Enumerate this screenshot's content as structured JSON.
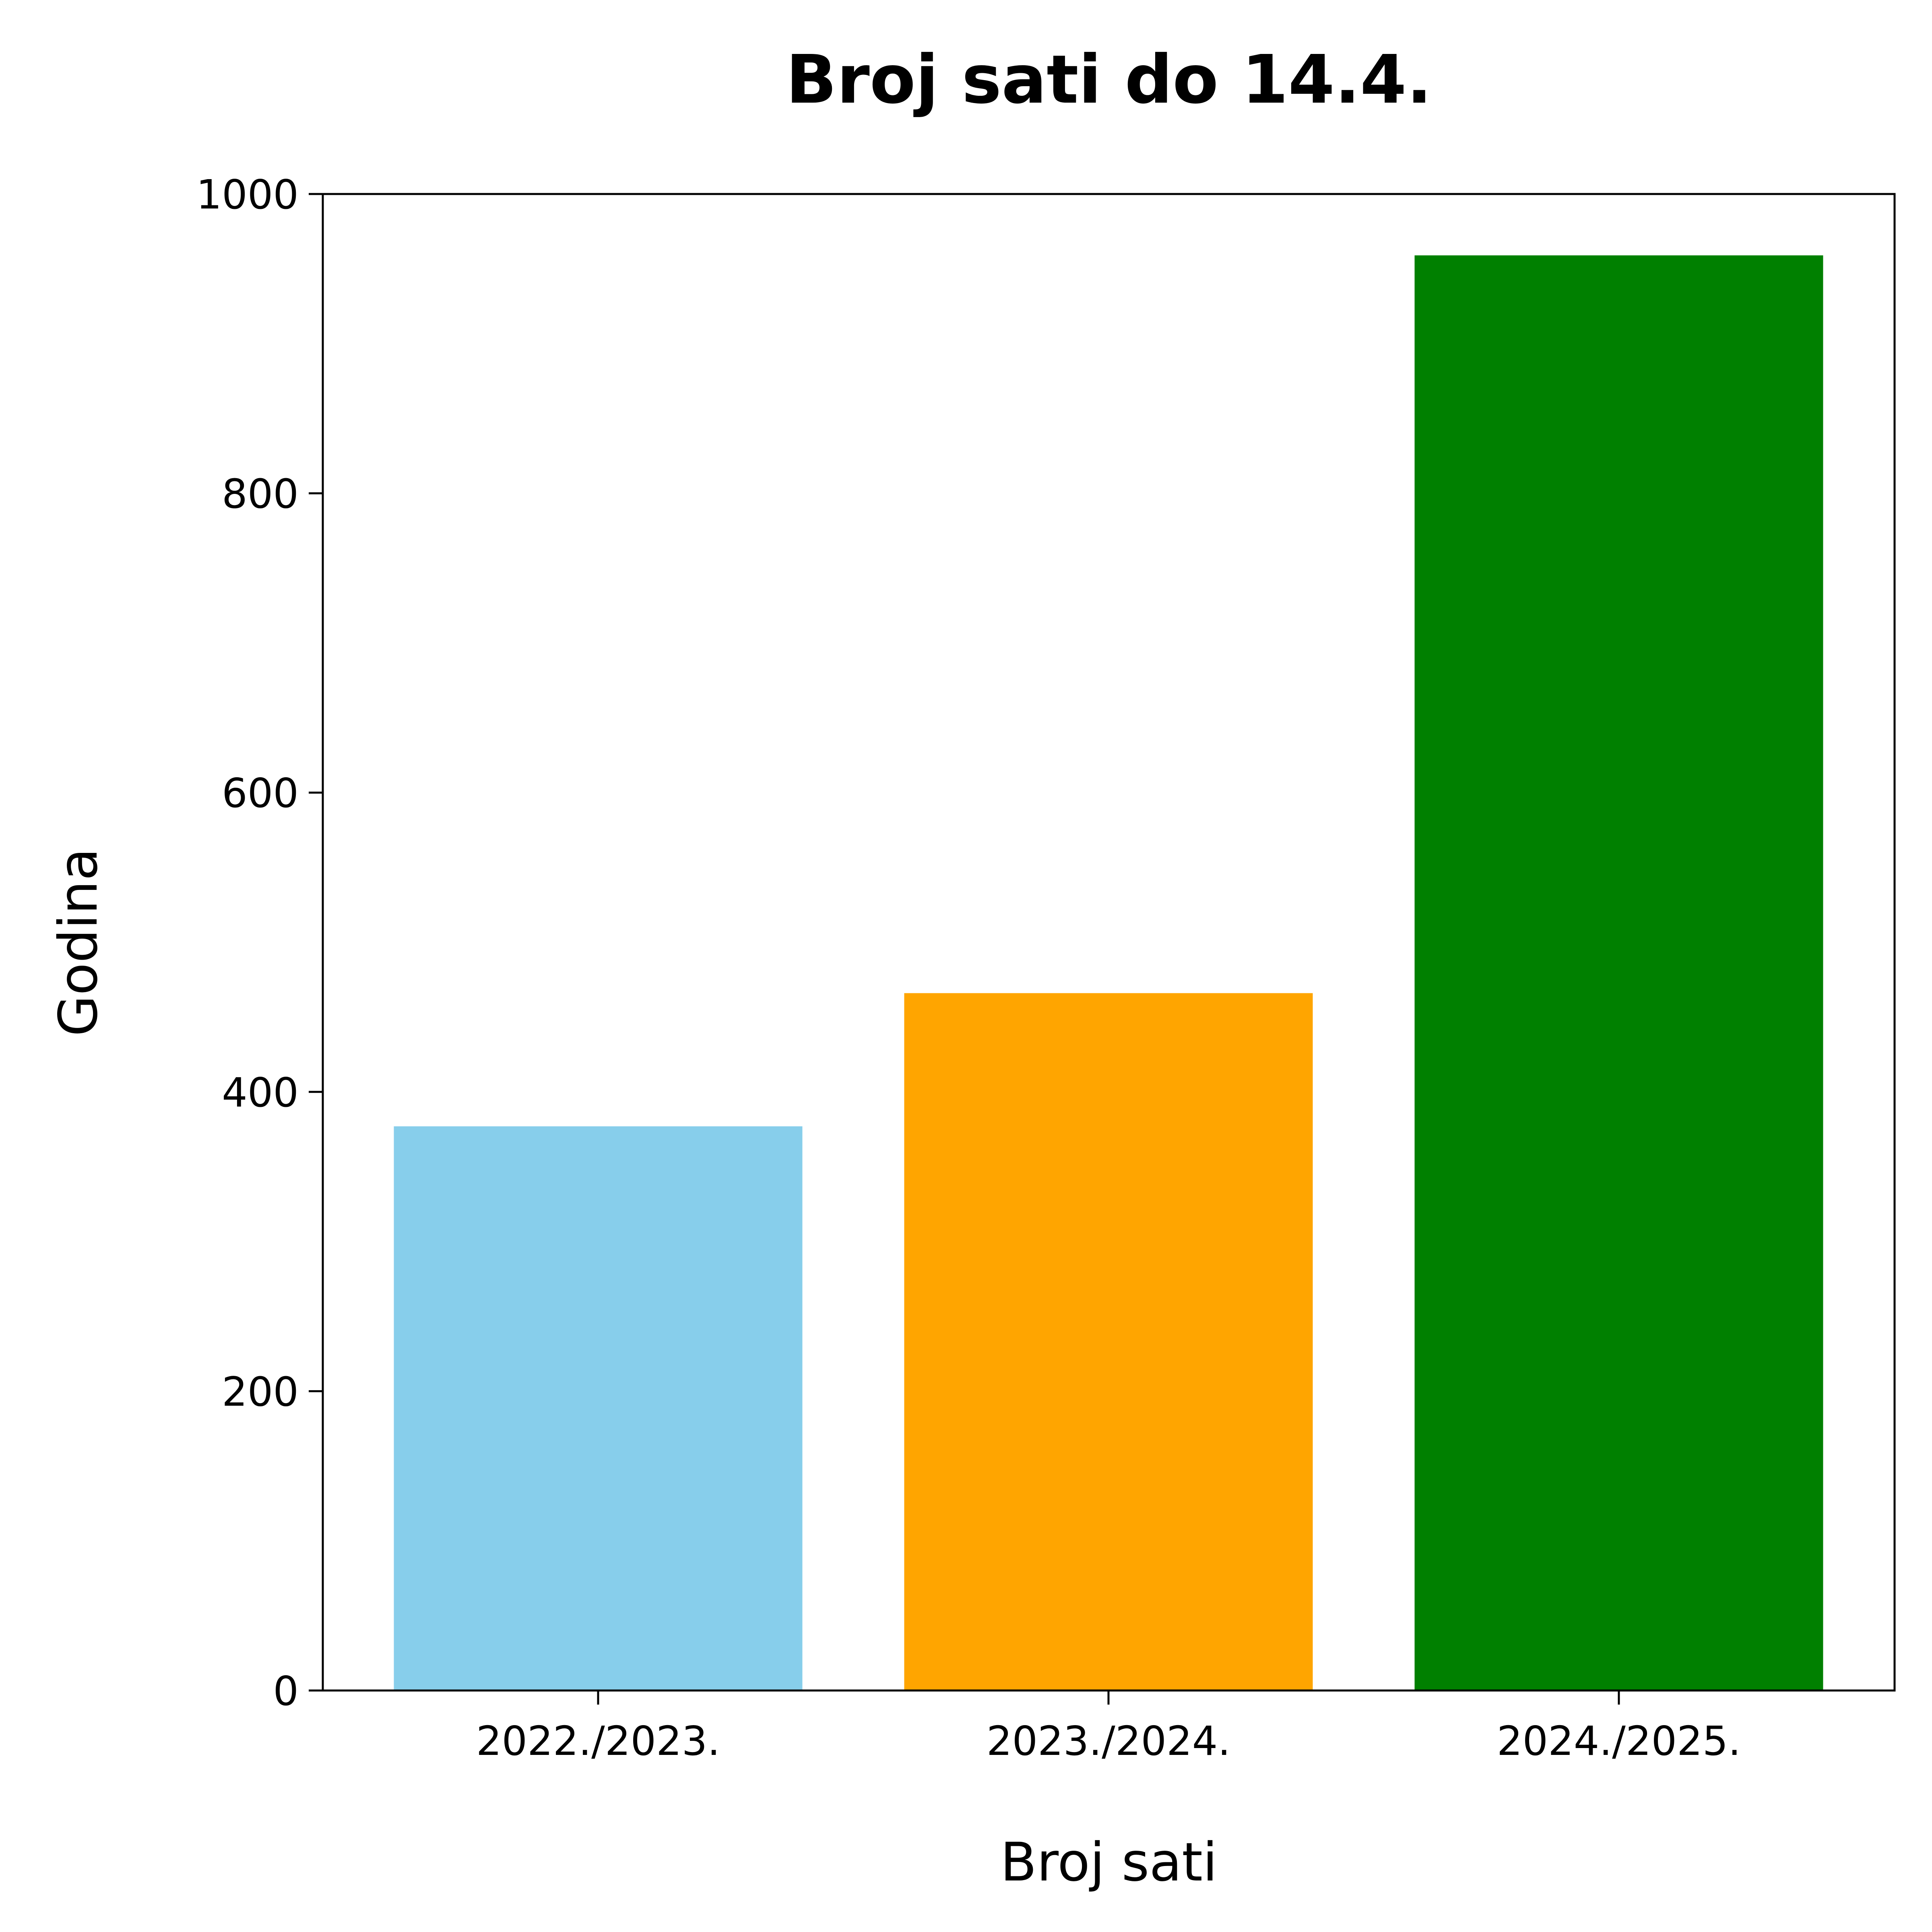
{
  "chart_data": {
    "type": "bar",
    "title": "Broj sati do 14.4.",
    "xlabel": "Broj sati",
    "ylabel": "Godina",
    "categories": [
      "2022./2023.",
      "2023./2024.",
      "2024./2025."
    ],
    "values": [
      377,
      466,
      959
    ],
    "colors": [
      "#87CEEB",
      "#FFA500",
      "#008000"
    ],
    "ylim": [
      0,
      1000
    ],
    "yticks": [
      0,
      200,
      400,
      600,
      800,
      1000
    ],
    "grid": false,
    "legend": "none"
  }
}
